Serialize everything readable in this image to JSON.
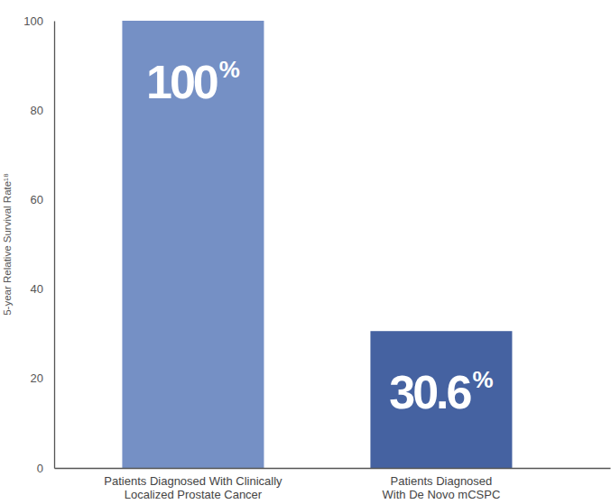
{
  "chart_data": {
    "type": "bar",
    "ylabel": "5-year Relative Survival Rate¹⁸",
    "categories": [
      "Patients Diagnosed With Clinically\nLocalized Prostate Cancer",
      "Patients Diagnosed\nWith De Novo mCSPC"
    ],
    "values": [
      100,
      30.6
    ],
    "value_labels": [
      "100%",
      "30.6%"
    ],
    "data_labels": true,
    "colors": [
      "#7590c5",
      "#4562a1"
    ],
    "ylim": [
      0,
      100
    ],
    "yticks": [
      0,
      20,
      40,
      60,
      80,
      100
    ],
    "grid": false
  }
}
